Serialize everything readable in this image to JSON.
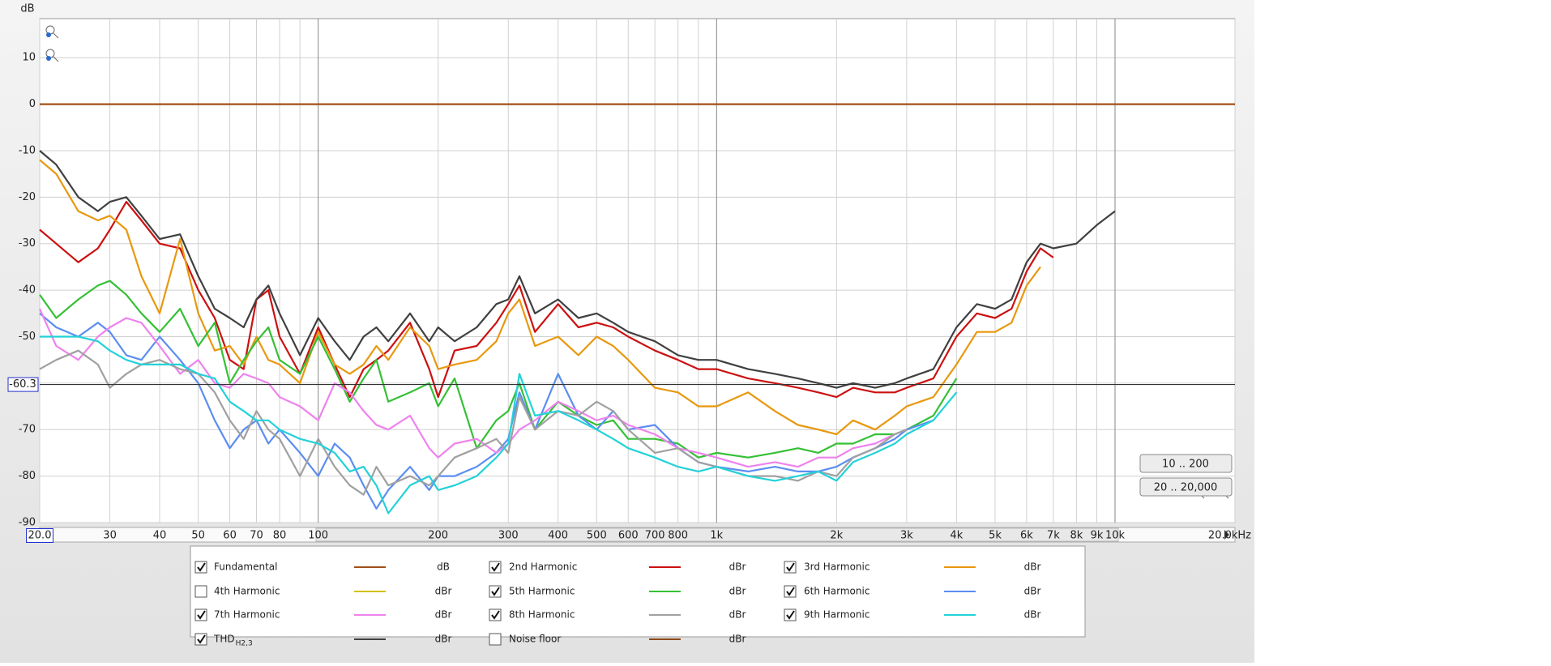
{
  "chart_data": {
    "type": "line",
    "y_label": "dB",
    "xscale": "log",
    "grid": true,
    "xlim": [
      20,
      20000
    ],
    "ylim": [
      -90,
      18.4
    ],
    "yticks": [
      10,
      0,
      -10,
      -20,
      -30,
      -40,
      -50,
      -60,
      -70,
      -80,
      -90
    ],
    "xticks": [
      {
        "value": 20,
        "label": "20.0"
      },
      30,
      40,
      50,
      60,
      70,
      80,
      100,
      200,
      300,
      400,
      500,
      600,
      700,
      800,
      {
        "value": 1000,
        "label": "1k"
      },
      {
        "value": 2000,
        "label": "2k"
      },
      {
        "value": 3000,
        "label": "3k"
      },
      {
        "value": 4000,
        "label": "4k"
      },
      {
        "value": 5000,
        "label": "5k"
      },
      {
        "value": 6000,
        "label": "6k"
      },
      {
        "value": 7000,
        "label": "7k"
      },
      {
        "value": 8000,
        "label": "8k"
      },
      {
        "value": 9000,
        "label": "9k"
      },
      {
        "value": 10000,
        "label": "10k"
      },
      {
        "value": 20000,
        "label": "20.0kHz"
      }
    ],
    "xminorticks": [
      90,
      900
    ],
    "cursor_y": -60.3,
    "buttons": [
      "10 .. 200",
      "20 .. 20,000"
    ],
    "x": [
      20,
      22,
      25,
      28,
      30,
      33,
      36,
      40,
      45,
      50,
      55,
      60,
      65,
      70,
      75,
      80,
      90,
      100,
      110,
      120,
      130,
      140,
      150,
      170,
      190,
      200,
      220,
      250,
      280,
      300,
      320,
      350,
      400,
      450,
      500,
      550,
      600,
      700,
      800,
      900,
      1000,
      1200,
      1400,
      1600,
      1800,
      2000,
      2200,
      2500,
      2800,
      3000,
      3500,
      4000,
      4500,
      5000,
      5500,
      6000,
      6500,
      7000,
      8000,
      9000,
      10000,
      20000
    ],
    "series": [
      {
        "name": "Fundamental",
        "unit": "dB",
        "checked": true,
        "color": "#a0501a",
        "values": [
          0,
          0,
          0,
          0,
          0,
          0,
          0,
          0,
          0,
          0,
          0,
          0,
          0,
          0,
          0,
          0,
          0,
          0,
          0,
          0,
          0,
          0,
          0,
          0,
          0,
          0,
          0,
          0,
          0,
          0,
          0,
          0,
          0,
          0,
          0,
          0,
          0,
          0,
          0,
          0,
          0,
          0,
          0,
          0,
          0,
          0,
          0,
          0,
          0,
          0,
          0,
          0,
          0,
          0,
          0,
          0,
          0,
          0,
          0,
          0,
          0,
          0
        ]
      },
      {
        "name": "2nd Harmonic",
        "unit": "dBr",
        "checked": true,
        "color": "#cc1010",
        "values": [
          -27,
          -30,
          -34,
          -31,
          -27,
          -21,
          -25,
          -30,
          -31,
          -40,
          -46,
          -55,
          -57,
          -42,
          -40,
          -50,
          -58,
          -48,
          -56,
          -63,
          -57,
          -55,
          -53,
          -47,
          -57,
          -63,
          -53,
          -52,
          -47,
          -43,
          -39,
          -49,
          -43,
          -48,
          -47,
          -48,
          -50,
          -53,
          -55,
          -57,
          -57,
          -59,
          -60,
          -61,
          -62,
          -63,
          -61,
          -62,
          -62,
          -61,
          -59,
          -50,
          -45,
          -46,
          -44,
          -36,
          -31,
          -33,
          null,
          null,
          null,
          null
        ]
      },
      {
        "name": "3rd Harmonic",
        "unit": "dBr",
        "checked": true,
        "color": "#e8980f",
        "values": [
          -12,
          -15,
          -23,
          -25,
          -24,
          -27,
          -37,
          -45,
          -29,
          -45,
          -53,
          -52,
          -56,
          -50,
          -55,
          -56,
          -60,
          -49,
          -56,
          -58,
          -56,
          -52,
          -55,
          -48,
          -52,
          -57,
          -56,
          -55,
          -51,
          -45,
          -42,
          -52,
          -50,
          -54,
          -50,
          -52,
          -55,
          -61,
          -62,
          -65,
          -65,
          -62,
          -66,
          -69,
          -70,
          -71,
          -68,
          -70,
          -67,
          -65,
          -63,
          -56,
          -49,
          -49,
          -47,
          -39,
          -35,
          null,
          null,
          null,
          null,
          null
        ]
      },
      {
        "name": "4th Harmonic",
        "unit": "dBr",
        "checked": false,
        "color": "#d2c200"
      },
      {
        "name": "5th Harmonic",
        "unit": "dBr",
        "checked": true,
        "color": "#35c035",
        "values": [
          -41,
          -46,
          -42,
          -39,
          -38,
          -41,
          -45,
          -49,
          -44,
          -52,
          -47,
          -60,
          -55,
          -51,
          -48,
          -55,
          -58,
          -50,
          -57,
          -64,
          -59,
          -55,
          -64,
          -62,
          -60,
          -65,
          -59,
          -74,
          -68,
          -66,
          -60,
          -70,
          -64,
          -67,
          -69,
          -68,
          -72,
          -72,
          -73,
          -76,
          -75,
          -76,
          -75,
          -74,
          -75,
          -73,
          -73,
          -71,
          -71,
          -70,
          -67,
          -59,
          null,
          null,
          null,
          null,
          null,
          null,
          null,
          null,
          null,
          null
        ]
      },
      {
        "name": "6th Harmonic",
        "unit": "dBr",
        "checked": true,
        "color": "#5b8ef0",
        "values": [
          -45,
          -48,
          -50,
          -47,
          -49,
          -54,
          -55,
          -50,
          -55,
          -60,
          -68,
          -74,
          -70,
          -68,
          -73,
          -70,
          -75,
          -80,
          -73,
          -76,
          -82,
          -87,
          -83,
          -78,
          -83,
          -80,
          -80,
          -78,
          -75,
          -72,
          -62,
          -70,
          -58,
          -67,
          -70,
          -66,
          -70,
          -69,
          -74,
          -77,
          -78,
          -79,
          -78,
          -79,
          -79,
          -78,
          -76,
          -74,
          -72,
          -70,
          -68,
          null,
          null,
          null,
          null,
          null,
          null,
          null,
          null,
          null,
          null,
          null
        ]
      },
      {
        "name": "7th Harmonic",
        "unit": "dBr",
        "checked": true,
        "color": "#ee82ee",
        "values": [
          -44,
          -52,
          -55,
          -50,
          -48,
          -46,
          -47,
          -52,
          -58,
          -55,
          -60,
          -61,
          -58,
          -59,
          -60,
          -63,
          -65,
          -68,
          -60,
          -62,
          -66,
          -69,
          -70,
          -67,
          -74,
          -76,
          -73,
          -72,
          -75,
          -73,
          -70,
          -68,
          -64,
          -66,
          -68,
          -67,
          -69,
          -71,
          -74,
          -75,
          -76,
          -78,
          -77,
          -78,
          -76,
          -76,
          -74,
          -73,
          -71,
          -70,
          null,
          null,
          null,
          null,
          null,
          null,
          null,
          null,
          null,
          null,
          null,
          null
        ]
      },
      {
        "name": "8th Harmonic",
        "unit": "dBr",
        "checked": true,
        "color": "#a0a0a0",
        "values": [
          -57,
          -55,
          -53,
          -56,
          -61,
          -58,
          -56,
          -55,
          -57,
          -58,
          -62,
          -68,
          -72,
          -66,
          -70,
          -72,
          -80,
          -72,
          -78,
          -82,
          -84,
          -78,
          -82,
          -80,
          -82,
          -80,
          -76,
          -74,
          -72,
          -75,
          -63,
          -70,
          -66,
          -67,
          -64,
          -66,
          -70,
          -75,
          -74,
          -77,
          -78,
          -80,
          -80,
          -81,
          -79,
          -80,
          -76,
          -74,
          -71,
          -70,
          null,
          null,
          null,
          null,
          null,
          null,
          null,
          null,
          null,
          null,
          null,
          null
        ]
      },
      {
        "name": "9th Harmonic",
        "unit": "dBr",
        "checked": true,
        "color": "#22d2d8",
        "values": [
          -50,
          -50,
          -50,
          -51,
          -53,
          -55,
          -56,
          -56,
          -56,
          -58,
          -59,
          -64,
          -66,
          -68,
          -68,
          -70,
          -72,
          -73,
          -75,
          -79,
          -78,
          -82,
          -88,
          -82,
          -80,
          -83,
          -82,
          -80,
          -76,
          -73,
          -58,
          -67,
          -66,
          -68,
          -70,
          -72,
          -74,
          -76,
          -78,
          -79,
          -78,
          -80,
          -81,
          -80,
          -79,
          -81,
          -77,
          -75,
          -73,
          -71,
          -68,
          -62,
          null,
          null,
          null,
          null,
          null,
          null,
          null,
          null,
          null,
          null
        ]
      },
      {
        "name": "THD",
        "name_sub": "H2,3",
        "unit": "dBr",
        "checked": true,
        "color": "#404040",
        "values": [
          -10,
          -13,
          -20,
          -23,
          -21,
          -20,
          -24,
          -29,
          -28,
          -37,
          -44,
          -46,
          -48,
          -42,
          -39,
          -45,
          -54,
          -46,
          -51,
          -55,
          -50,
          -48,
          -51,
          -45,
          -51,
          -48,
          -51,
          -48,
          -43,
          -42,
          -37,
          -45,
          -42,
          -46,
          -45,
          -47,
          -49,
          -51,
          -54,
          -55,
          -55,
          -57,
          -58,
          -59,
          -60,
          -61,
          -60,
          -61,
          -60,
          -59,
          -57,
          -48,
          -43,
          -44,
          -42,
          -34,
          -30,
          -31,
          -30,
          -26,
          -23,
          null
        ]
      },
      {
        "name": "Noise floor",
        "unit": "dBr",
        "checked": false,
        "color": "#8b4a1a"
      }
    ]
  }
}
